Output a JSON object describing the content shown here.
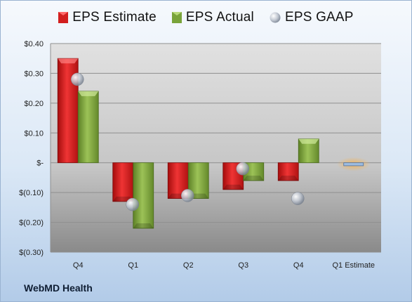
{
  "colors": {
    "estimate": "#d21e1e",
    "actual": "#79a33a",
    "gaap": "#b8bfca",
    "estimate_highlight": "#f2a24a"
  },
  "company_label": "WebMD Health",
  "legend": [
    {
      "label": "EPS Estimate",
      "icon": "bar-icon-red"
    },
    {
      "label": "EPS Actual",
      "icon": "bar-icon-green"
    },
    {
      "label": "EPS GAAP",
      "icon": "sphere-icon-gray"
    }
  ],
  "chart_data": {
    "type": "bar",
    "categories": [
      "Q4",
      "Q1",
      "Q2",
      "Q3",
      "Q4",
      "Q1 Estimate"
    ],
    "series": [
      {
        "name": "EPS Estimate",
        "values": [
          0.35,
          -0.13,
          -0.12,
          -0.09,
          -0.06,
          -0.01
        ]
      },
      {
        "name": "EPS Actual",
        "values": [
          0.24,
          -0.22,
          -0.12,
          -0.06,
          0.08,
          null
        ]
      },
      {
        "name": "EPS GAAP",
        "values": [
          0.28,
          -0.14,
          -0.11,
          -0.02,
          -0.12,
          null
        ]
      }
    ],
    "ylim": [
      -0.3,
      0.4
    ],
    "y_ticks": [
      {
        "value": 0.4,
        "label": "$0.40"
      },
      {
        "value": 0.3,
        "label": "$0.30"
      },
      {
        "value": 0.2,
        "label": "$0.20"
      },
      {
        "value": 0.1,
        "label": "$0.10"
      },
      {
        "value": 0.0,
        "label": "$-"
      },
      {
        "value": -0.1,
        "label": "$(0.10)"
      },
      {
        "value": -0.2,
        "label": "$(0.20)"
      },
      {
        "value": -0.3,
        "label": "$(0.30)"
      }
    ],
    "grid": true,
    "legend_position": "top"
  }
}
